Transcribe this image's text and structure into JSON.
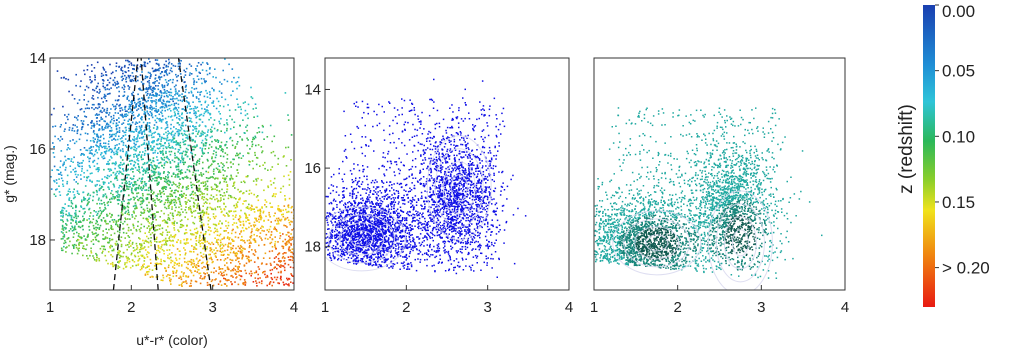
{
  "chart_data": [
    {
      "type": "scatter",
      "panel": "left",
      "title": "",
      "xlabel": "u*-r* (color)",
      "ylabel": "g* (mag.)",
      "xlim": [
        1,
        4
      ],
      "ylim": [
        19.1,
        14
      ],
      "y_inverted": true,
      "xticks": [
        "1",
        "2",
        "3",
        "4"
      ],
      "yticks": [
        "14",
        "16",
        "18"
      ],
      "color_encoding": "redshift",
      "dashed_boundaries": [
        {
          "x": [
            1.78,
            2.08
          ],
          "y": [
            19.1,
            14
          ]
        },
        {
          "x": [
            2.33,
            2.12
          ],
          "y": [
            19.1,
            14
          ]
        },
        {
          "x": [
            2.98,
            2.58
          ],
          "y": [
            19.1,
            14
          ]
        }
      ]
    },
    {
      "type": "scatter",
      "panel": "middle",
      "title": "",
      "xlabel": "",
      "ylabel": "",
      "xlim": [
        1,
        4
      ],
      "ylim": [
        19.1,
        13.2
      ],
      "y_inverted": true,
      "xticks": [
        "1",
        "2",
        "3",
        "4"
      ],
      "yticks": [
        "14",
        "16",
        "18"
      ],
      "point_color": "#1010e6",
      "contour_peaks": [
        {
          "x": 1.45,
          "y": 17.8
        },
        {
          "x": 2.65,
          "y": 16.5
        }
      ]
    },
    {
      "type": "scatter",
      "panel": "right",
      "title": "",
      "xlabel": "",
      "ylabel": "",
      "xlim": [
        1,
        4
      ],
      "ylim": [
        19.1,
        13.2
      ],
      "y_inverted": true,
      "xticks": [
        "1",
        "2",
        "3",
        "4"
      ],
      "yticks": [],
      "point_color": "#1ea8a0",
      "contour_peaks": [
        {
          "x": 1.75,
          "y": 17.9
        },
        {
          "x": 2.75,
          "y": 17.9
        }
      ]
    }
  ],
  "colorbar": {
    "label": "z (redshift)",
    "ticks": [
      "0.00",
      "0.05",
      "0.10",
      "0.15",
      "> 0.20"
    ],
    "tick_values": [
      0.0,
      0.05,
      0.1,
      0.15,
      0.2
    ],
    "range": [
      0.0,
      0.23
    ],
    "colors": [
      "#1a3fb0",
      "#1f8fd6",
      "#2ec4d8",
      "#2bb85a",
      "#8ccf2a",
      "#f0e21c",
      "#f08a10",
      "#e81a12"
    ]
  }
}
